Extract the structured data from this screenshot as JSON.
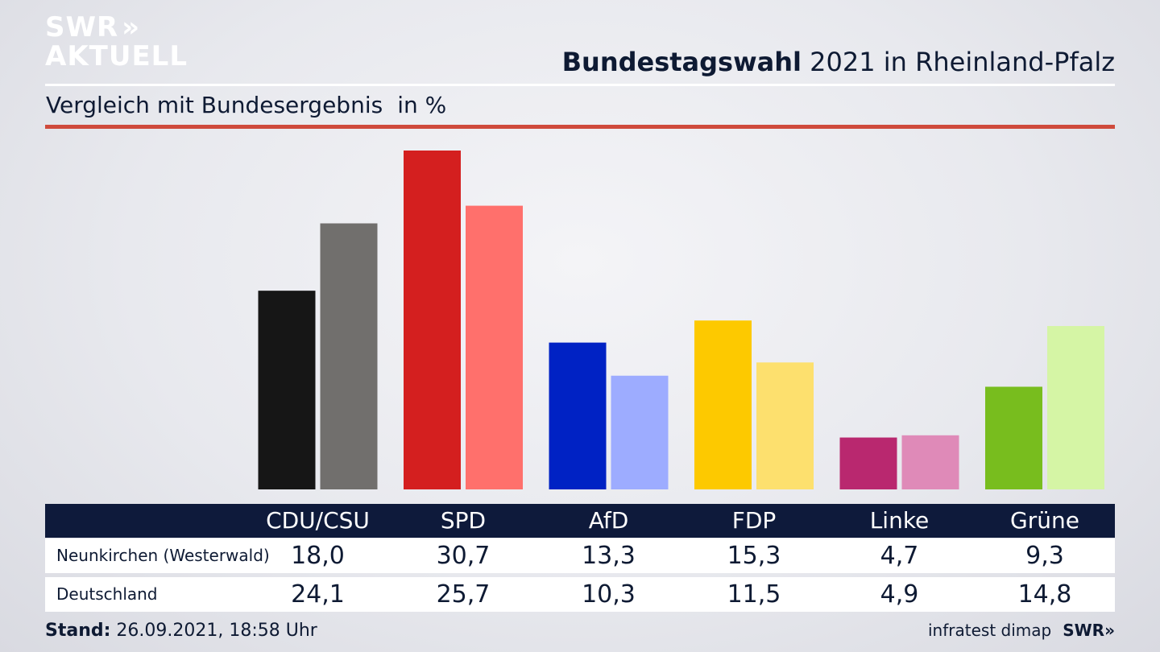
{
  "brand": {
    "line1": "SWR",
    "line2": "AKTUELL",
    "arrows": "»"
  },
  "header": {
    "title_bold": "Bundestagswahl",
    "title_rest": "2021 in Rheinland-Pfalz"
  },
  "subtitle": {
    "text": "Vergleich mit Bundesergebnis",
    "unit": "in %"
  },
  "footer": {
    "stand_label": "Stand:",
    "stand_value": "26.09.2021, 18:58 Uhr",
    "source": "infratest dimap",
    "logo": "SWR»"
  },
  "chart_data": {
    "type": "bar",
    "categories": [
      "CDU/CSU",
      "SPD",
      "AfD",
      "FDP",
      "Linke",
      "Grüne"
    ],
    "series": [
      {
        "name": "Neunkirchen (Westerwald)",
        "values": [
          "18,0",
          "30,7",
          "13,3",
          "15,3",
          "4,7",
          "9,3"
        ],
        "numeric": [
          18.0,
          30.7,
          13.3,
          15.3,
          4.7,
          9.3
        ]
      },
      {
        "name": "Deutschland",
        "values": [
          "24,1",
          "25,7",
          "10,3",
          "11,5",
          "4,9",
          "14,8"
        ],
        "numeric": [
          24.1,
          25.7,
          10.3,
          11.5,
          4.9,
          14.8
        ]
      }
    ],
    "colors": {
      "series1": [
        "#161616",
        "#d41f1f",
        "#0022c4",
        "#fdc900",
        "#b9286f",
        "#78bd1e"
      ],
      "series2": [
        "#716f6d",
        "#ff706c",
        "#9dacff",
        "#fde06e",
        "#df8ab8",
        "#d5f5a5"
      ]
    },
    "ylim": [
      0,
      30.7
    ],
    "grid": false
  }
}
